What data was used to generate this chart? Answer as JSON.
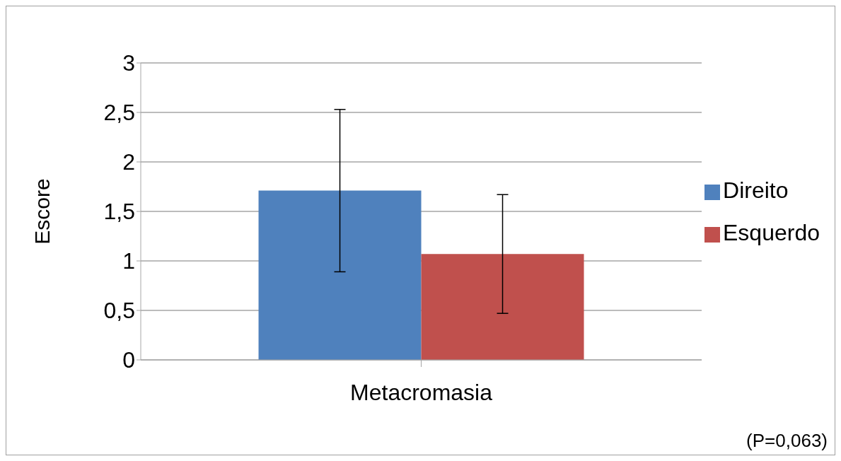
{
  "chart_data": {
    "type": "bar",
    "ylabel": "Escore",
    "categories": [
      "Metacromasia"
    ],
    "series": [
      {
        "name": "Direito",
        "color": "#4f81bd",
        "values": [
          1.71
        ],
        "errors": [
          0.82
        ]
      },
      {
        "name": "Esquerdo",
        "color": "#c0504d",
        "values": [
          1.07
        ],
        "errors": [
          0.6
        ]
      }
    ],
    "ylim": [
      0,
      3
    ],
    "yticks": [
      0,
      {
        "value": 0.5,
        "label": "0,5"
      },
      1,
      {
        "value": 1.5,
        "label": "1,5"
      },
      2,
      {
        "value": 2.5,
        "label": "2,5"
      },
      3
    ],
    "grid": "y",
    "legend": "right",
    "annotations": [
      "(P=0,063)"
    ]
  }
}
